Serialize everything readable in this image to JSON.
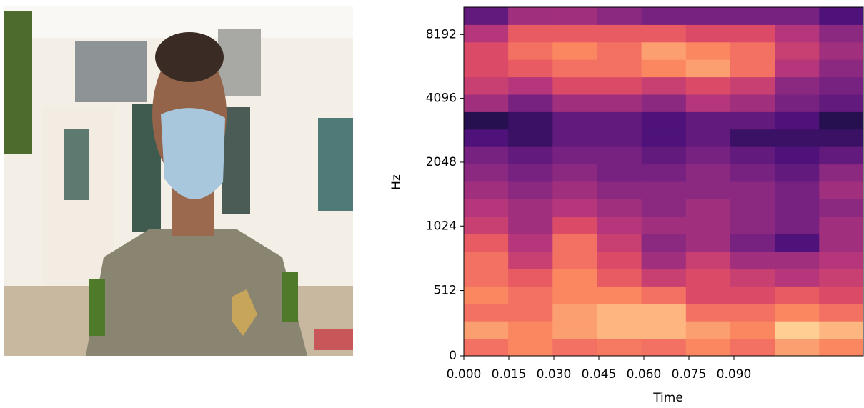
{
  "chart_data": {
    "type": "heatmap",
    "colormap": "magma",
    "yscale": "symlog",
    "xlabel": "Time",
    "ylabel": "Hz",
    "x": [
      0,
      0.0148,
      0.0296,
      0.0444,
      0.0592,
      0.074,
      0.0888,
      0.1036,
      0.1184
    ],
    "xlim": [
      0,
      0.1331
    ],
    "ylim": [
      0,
      11025
    ],
    "xticks": [
      {
        "value": 0,
        "label": "0.000"
      },
      {
        "value": 0.015,
        "label": "0.015"
      },
      {
        "value": 0.03,
        "label": "0.030"
      },
      {
        "value": 0.045,
        "label": "0.045"
      },
      {
        "value": 0.06,
        "label": "0.060"
      },
      {
        "value": 0.075,
        "label": "0.075"
      },
      {
        "value": 0.09,
        "label": "0.090"
      }
    ],
    "yticks": [
      0,
      512,
      1024,
      2048,
      4096,
      8192
    ],
    "values": [
      [
        0.7,
        0.75,
        0.7,
        0.72,
        0.7,
        0.75,
        0.7,
        0.8,
        0.75
      ],
      [
        0.8,
        0.75,
        0.8,
        0.85,
        0.85,
        0.8,
        0.75,
        0.9,
        0.85
      ],
      [
        0.7,
        0.7,
        0.8,
        0.85,
        0.85,
        0.7,
        0.7,
        0.75,
        0.7
      ],
      [
        0.75,
        0.7,
        0.75,
        0.75,
        0.7,
        0.6,
        0.6,
        0.65,
        0.6
      ],
      [
        0.7,
        0.65,
        0.75,
        0.65,
        0.55,
        0.6,
        0.55,
        0.5,
        0.55
      ],
      [
        0.7,
        0.55,
        0.7,
        0.6,
        0.45,
        0.55,
        0.45,
        0.45,
        0.5
      ],
      [
        0.65,
        0.5,
        0.7,
        0.55,
        0.4,
        0.45,
        0.35,
        0.25,
        0.45
      ],
      [
        0.55,
        0.45,
        0.6,
        0.5,
        0.45,
        0.45,
        0.4,
        0.35,
        0.45
      ],
      [
        0.5,
        0.45,
        0.5,
        0.45,
        0.4,
        0.45,
        0.4,
        0.35,
        0.4
      ],
      [
        0.45,
        0.4,
        0.45,
        0.4,
        0.4,
        0.4,
        0.4,
        0.35,
        0.45
      ],
      [
        0.4,
        0.35,
        0.4,
        0.35,
        0.35,
        0.4,
        0.35,
        0.3,
        0.4
      ],
      [
        0.35,
        0.3,
        0.35,
        0.35,
        0.3,
        0.35,
        0.3,
        0.25,
        0.3
      ],
      [
        0.25,
        0.2,
        0.3,
        0.3,
        0.25,
        0.3,
        0.2,
        0.2,
        0.2
      ],
      [
        0.15,
        0.2,
        0.3,
        0.3,
        0.25,
        0.3,
        0.3,
        0.25,
        0.15
      ],
      [
        0.45,
        0.35,
        0.45,
        0.45,
        0.4,
        0.5,
        0.45,
        0.35,
        0.3
      ],
      [
        0.55,
        0.5,
        0.6,
        0.6,
        0.55,
        0.6,
        0.55,
        0.4,
        0.35
      ],
      [
        0.6,
        0.65,
        0.7,
        0.7,
        0.75,
        0.8,
        0.7,
        0.5,
        0.4
      ],
      [
        0.6,
        0.7,
        0.75,
        0.7,
        0.8,
        0.75,
        0.7,
        0.55,
        0.45
      ],
      [
        0.5,
        0.65,
        0.65,
        0.65,
        0.65,
        0.6,
        0.6,
        0.5,
        0.4
      ],
      [
        0.3,
        0.45,
        0.45,
        0.4,
        0.35,
        0.35,
        0.35,
        0.35,
        0.25
      ]
    ]
  }
}
